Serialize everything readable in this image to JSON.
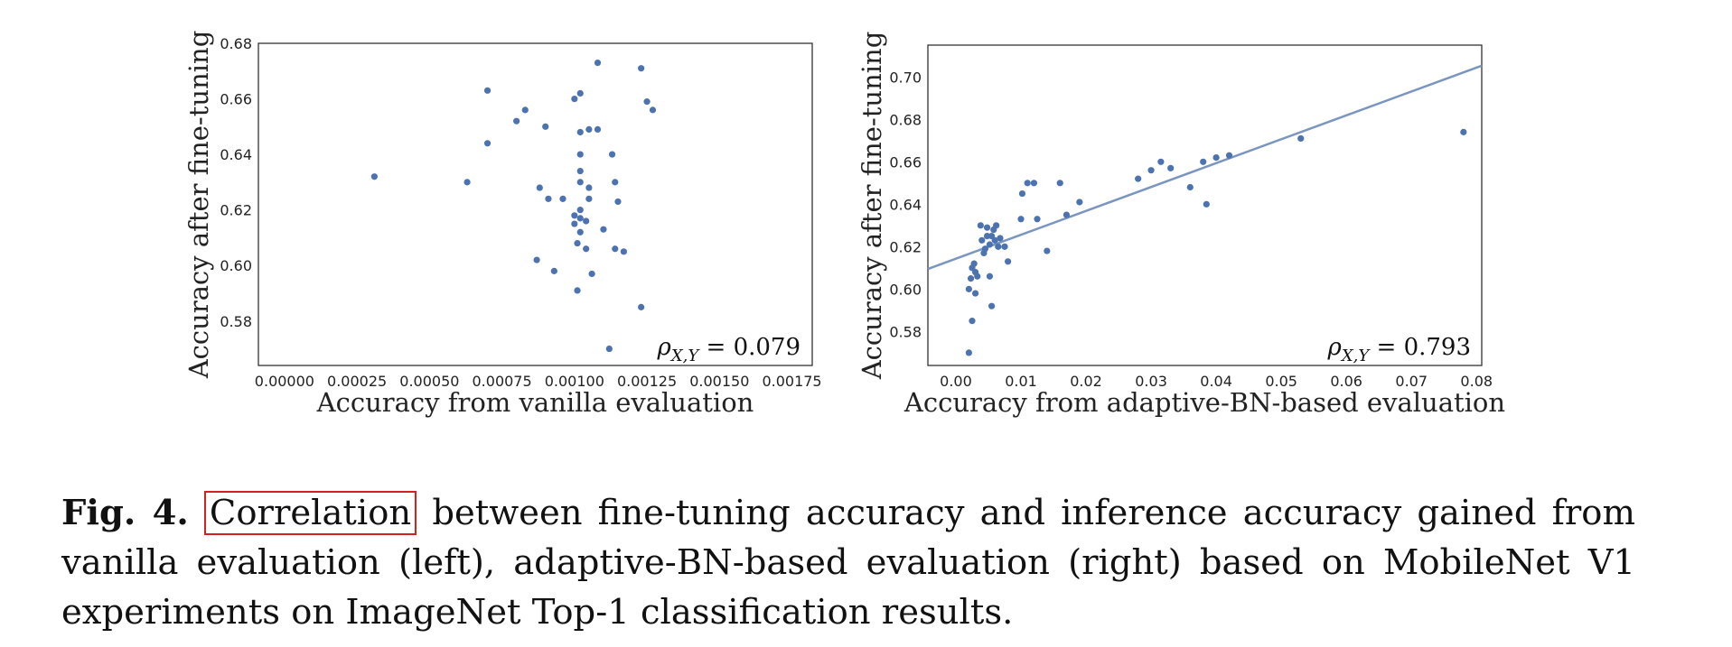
{
  "caption": {
    "fig_label": "Fig. 4.",
    "highlighted_word": "Correlation",
    "text": "between fine-tuning accuracy and inference accuracy gained from vanilla evaluation (left), adaptive-BN-based evaluation (right) based on MobileNet V1 experiments on ImageNet Top-1 classification results.",
    "highlight_color": "#d42020"
  },
  "chart_data": [
    {
      "type": "scatter",
      "title": "",
      "xlabel": "Accuracy from vanilla evaluation",
      "ylabel": "Accuracy after fine-tuning",
      "xlim": [
        -9e-05,
        0.00182
      ],
      "ylim": [
        0.564,
        0.68
      ],
      "xticks": [
        "0.00000",
        "0.00025",
        "0.00050",
        "0.00075",
        "0.00100",
        "0.00125",
        "0.00150",
        "0.00175"
      ],
      "yticks": [
        "0.58",
        "0.60",
        "0.62",
        "0.64",
        "0.66",
        "0.68"
      ],
      "annotation": {
        "rho": "ρ",
        "sub": "X,Y",
        "text": " = 0.079"
      },
      "point_color": "#4c72b0",
      "series": [
        {
          "points": [
            [
              0.00031,
              0.632
            ],
            [
              0.00063,
              0.63
            ],
            [
              0.0007,
              0.663
            ],
            [
              0.0007,
              0.644
            ],
            [
              0.00083,
              0.656
            ],
            [
              0.0008,
              0.652
            ],
            [
              0.0009,
              0.65
            ],
            [
              0.00088,
              0.628
            ],
            [
              0.00091,
              0.624
            ],
            [
              0.00096,
              0.624
            ],
            [
              0.001,
              0.66
            ],
            [
              0.00102,
              0.662
            ],
            [
              0.00102,
              0.648
            ],
            [
              0.00105,
              0.649
            ],
            [
              0.00108,
              0.649
            ],
            [
              0.00108,
              0.673
            ],
            [
              0.00102,
              0.64
            ],
            [
              0.00102,
              0.634
            ],
            [
              0.00102,
              0.63
            ],
            [
              0.00105,
              0.628
            ],
            [
              0.00105,
              0.624
            ],
            [
              0.00102,
              0.62
            ],
            [
              0.001,
              0.618
            ],
            [
              0.00102,
              0.617
            ],
            [
              0.00104,
              0.616
            ],
            [
              0.001,
              0.615
            ],
            [
              0.00102,
              0.612
            ],
            [
              0.00101,
              0.608
            ],
            [
              0.00104,
              0.606
            ],
            [
              0.0011,
              0.613
            ],
            [
              0.00113,
              0.64
            ],
            [
              0.00114,
              0.63
            ],
            [
              0.00115,
              0.623
            ],
            [
              0.00114,
              0.606
            ],
            [
              0.00117,
              0.605
            ],
            [
              0.00087,
              0.602
            ],
            [
              0.00093,
              0.598
            ],
            [
              0.00106,
              0.597
            ],
            [
              0.00101,
              0.591
            ],
            [
              0.00112,
              0.57
            ],
            [
              0.00123,
              0.671
            ],
            [
              0.00125,
              0.659
            ],
            [
              0.00127,
              0.656
            ],
            [
              0.00123,
              0.585
            ]
          ]
        }
      ]
    },
    {
      "type": "scatter",
      "title": "",
      "xlabel": "Accuracy from adaptive-BN-based evaluation",
      "ylabel": "Accuracy after fine-tuning",
      "xlim": [
        -0.0043,
        0.0808
      ],
      "ylim": [
        0.564,
        0.715
      ],
      "xticks": [
        "0.00",
        "0.01",
        "0.02",
        "0.03",
        "0.04",
        "0.05",
        "0.06",
        "0.07",
        "0.08"
      ],
      "yticks": [
        "0.58",
        "0.60",
        "0.62",
        "0.64",
        "0.66",
        "0.68",
        "0.70"
      ],
      "annotation": {
        "rho": "ρ",
        "sub": "X,Y",
        "text": " = 0.793"
      },
      "point_color": "#4c72b0",
      "line_color": "#7a96c0",
      "regression": {
        "x": [
          -0.0043,
          0.0808
        ],
        "y": [
          0.6095,
          0.7053
        ]
      },
      "series": [
        {
          "points": [
            [
              0.002,
              0.57
            ],
            [
              0.0025,
              0.585
            ],
            [
              0.002,
              0.6
            ],
            [
              0.0023,
              0.605
            ],
            [
              0.0025,
              0.61
            ],
            [
              0.0028,
              0.612
            ],
            [
              0.003,
              0.608
            ],
            [
              0.003,
              0.598
            ],
            [
              0.0033,
              0.606
            ],
            [
              0.0038,
              0.63
            ],
            [
              0.004,
              0.623
            ],
            [
              0.0043,
              0.617
            ],
            [
              0.0045,
              0.619
            ],
            [
              0.0048,
              0.625
            ],
            [
              0.0048,
              0.629
            ],
            [
              0.0052,
              0.606
            ],
            [
              0.0052,
              0.621
            ],
            [
              0.0055,
              0.592
            ],
            [
              0.0055,
              0.625
            ],
            [
              0.0058,
              0.628
            ],
            [
              0.006,
              0.623
            ],
            [
              0.0062,
              0.63
            ],
            [
              0.0065,
              0.62
            ],
            [
              0.0068,
              0.624
            ],
            [
              0.0075,
              0.62
            ],
            [
              0.008,
              0.613
            ],
            [
              0.01,
              0.633
            ],
            [
              0.0102,
              0.645
            ],
            [
              0.011,
              0.65
            ],
            [
              0.012,
              0.65
            ],
            [
              0.0125,
              0.633
            ],
            [
              0.014,
              0.618
            ],
            [
              0.016,
              0.65
            ],
            [
              0.017,
              0.635
            ],
            [
              0.019,
              0.641
            ],
            [
              0.028,
              0.652
            ],
            [
              0.03,
              0.656
            ],
            [
              0.0315,
              0.66
            ],
            [
              0.033,
              0.657
            ],
            [
              0.036,
              0.648
            ],
            [
              0.038,
              0.66
            ],
            [
              0.0385,
              0.64
            ],
            [
              0.04,
              0.662
            ],
            [
              0.042,
              0.663
            ],
            [
              0.053,
              0.671
            ],
            [
              0.078,
              0.674
            ]
          ]
        }
      ]
    }
  ]
}
